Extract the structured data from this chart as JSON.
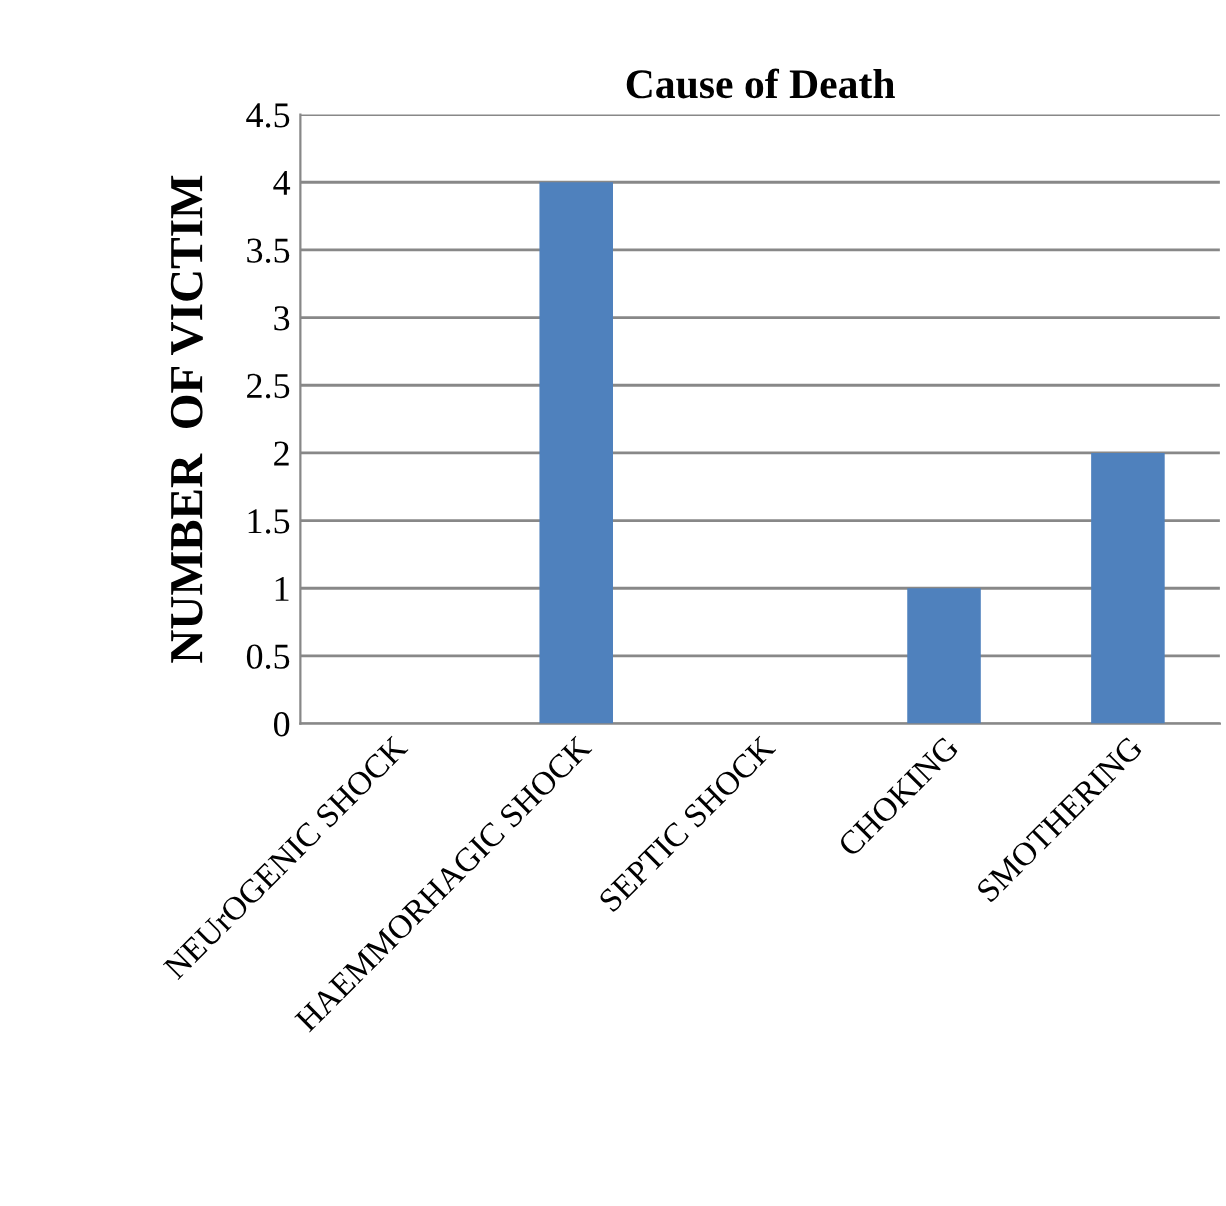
{
  "chart_data": {
    "type": "bar",
    "title": "Cause of Death",
    "ylabel": "NUMBER  OF VICTIM",
    "categories": [
      "NEUrOGENIC SHOCK",
      "HAEMMORHAGIC SHOCK",
      "SEPTIC SHOCK",
      "CHOKING",
      "SMOTHERING"
    ],
    "values": [
      0,
      4,
      0,
      1,
      2
    ],
    "color": "#4f81bd",
    "ylim": [
      0,
      4.5
    ],
    "yticks": [
      0,
      0.5,
      1,
      1.5,
      2,
      2.5,
      3,
      3.5,
      4,
      4.5
    ],
    "grid": "y",
    "legend": false
  }
}
